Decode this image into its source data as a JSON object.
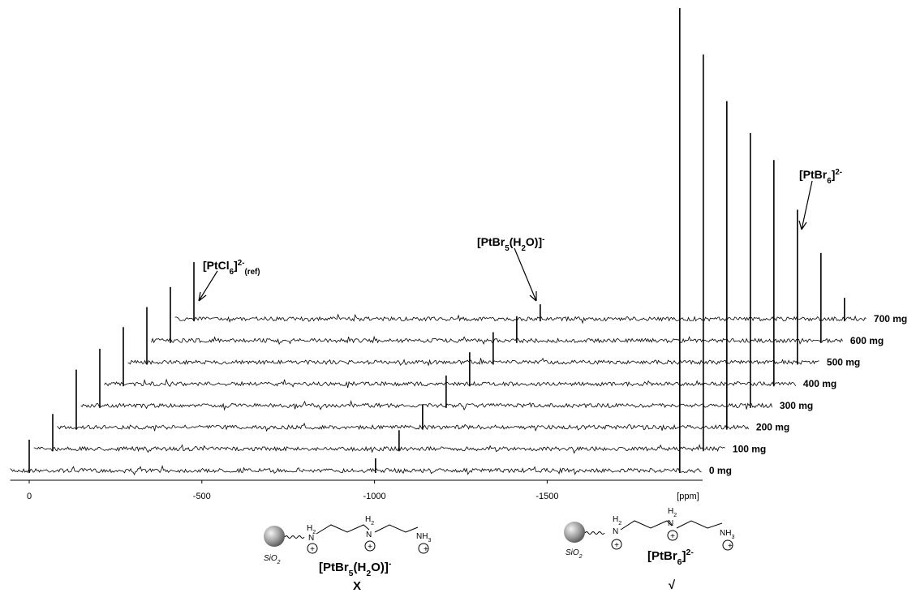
{
  "chart_data": {
    "type": "stacked-spectrum",
    "xlabel": "[ppm]",
    "xlim": [
      55,
      -1950
    ],
    "xticks": [
      0,
      -500,
      -1000,
      -1500
    ],
    "x": [
      0,
      -1003,
      -1884
    ],
    "series": [
      {
        "name": "0 mg",
        "values": [
          38,
          15,
          570
        ]
      },
      {
        "name": "100 mg",
        "values": [
          43,
          23,
          486
        ]
      },
      {
        "name": "200 mg",
        "values": [
          71,
          28,
          402
        ]
      },
      {
        "name": "300 mg",
        "values": [
          70,
          37,
          336
        ]
      },
      {
        "name": "400 mg",
        "values": [
          70,
          39,
          276
        ]
      },
      {
        "name": "500 mg",
        "values": [
          68,
          37,
          188
        ]
      },
      {
        "name": "600 mg",
        "values": [
          66,
          30,
          108
        ]
      },
      {
        "name": "700 mg",
        "values": [
          70,
          18,
          26
        ]
      }
    ],
    "color": "#000000",
    "annotations": [
      {
        "pieces": [
          {
            "text": "[PtCl"
          },
          {
            "text": "6",
            "shift": "sub"
          },
          {
            "text": "]"
          },
          {
            "text": "2-",
            "shift": "super"
          },
          {
            "text": "(ref)",
            "shift": "sub"
          }
        ]
      },
      {
        "pieces": [
          {
            "text": "[PtBr"
          },
          {
            "text": "5",
            "shift": "sub"
          },
          {
            "text": "(H"
          },
          {
            "text": "2",
            "shift": "sub"
          },
          {
            "text": "O)]"
          },
          {
            "text": "-",
            "shift": "super"
          }
        ]
      },
      {
        "pieces": [
          {
            "text": "[PtBr"
          },
          {
            "text": "6",
            "shift": "sub"
          },
          {
            "text": "]"
          },
          {
            "text": "2-",
            "shift": "super"
          }
        ]
      }
    ]
  },
  "structures": [
    {
      "labels": [
        [
          {
            "text": "SiO"
          },
          {
            "text": "2",
            "shift": "sub"
          }
        ],
        [
          {
            "text": "H"
          },
          {
            "text": "2",
            "shift": "sub"
          }
        ],
        [
          {
            "text": "N"
          }
        ],
        [
          {
            "text": "+"
          }
        ],
        [
          {
            "text": "H"
          },
          {
            "text": "2",
            "shift": "sub"
          }
        ],
        [
          {
            "text": "N"
          }
        ],
        [
          {
            "text": "+"
          }
        ],
        [
          {
            "text": "NH"
          },
          {
            "text": "3",
            "shift": "sub"
          }
        ],
        [
          {
            "text": "+"
          }
        ]
      ],
      "caption": [
        {
          "text": "[PtBr"
        },
        {
          "text": "5",
          "shift": "sub"
        },
        {
          "text": "(H"
        },
        {
          "text": "2",
          "shift": "sub"
        },
        {
          "text": "O)]"
        },
        {
          "text": "-",
          "shift": "super"
        }
      ],
      "verdict": "X"
    },
    {
      "labels": [
        [
          {
            "text": "SiO"
          },
          {
            "text": "2",
            "shift": "sub"
          }
        ],
        [
          {
            "text": "H"
          },
          {
            "text": "2",
            "shift": "sub"
          }
        ],
        [
          {
            "text": "N"
          }
        ],
        [
          {
            "text": "+"
          }
        ],
        [
          {
            "text": "H"
          },
          {
            "text": "2",
            "shift": "sub"
          }
        ],
        [
          {
            "text": "N"
          }
        ],
        [
          {
            "text": "+"
          }
        ],
        [
          {
            "text": "NH"
          },
          {
            "text": "3",
            "shift": "sub"
          }
        ],
        [
          {
            "text": "+"
          }
        ]
      ],
      "caption": [
        {
          "text": "[PtBr"
        },
        {
          "text": "6",
          "shift": "sub"
        },
        {
          "text": "]"
        },
        {
          "text": "2-",
          "shift": "super"
        }
      ],
      "verdict": "√"
    }
  ]
}
